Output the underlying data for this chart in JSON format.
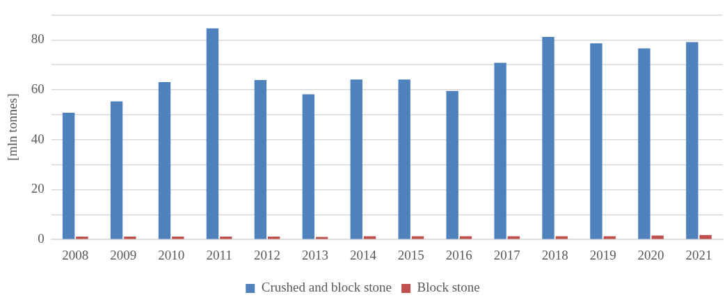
{
  "chart_data": {
    "type": "bar",
    "ylabel": "[mln tonnes]",
    "categories": [
      "2008",
      "2009",
      "2010",
      "2011",
      "2012",
      "2013",
      "2014",
      "2015",
      "2016",
      "2017",
      "2018",
      "2019",
      "2020",
      "2021"
    ],
    "series": [
      {
        "name": "Crushed and block stone",
        "color": "#4f81bd",
        "values": [
          50.8,
          55.3,
          63.1,
          84.6,
          63.9,
          58.2,
          64.1,
          64.1,
          59.5,
          70.8,
          81.2,
          78.6,
          76.6,
          79.1
        ]
      },
      {
        "name": "Block stone",
        "color": "#c0504d",
        "values": [
          1.2,
          1.2,
          1.2,
          1.2,
          1.2,
          1.0,
          1.3,
          1.3,
          1.3,
          1.3,
          1.3,
          1.3,
          1.6,
          1.8
        ]
      }
    ],
    "ylim": [
      0,
      90
    ],
    "yticks": [
      0,
      {
        "value": 10,
        "label": null
      },
      20,
      {
        "value": 30,
        "label": null
      },
      40,
      {
        "value": 50,
        "label": null
      },
      60,
      {
        "value": 70,
        "label": null
      },
      80,
      {
        "value": 90,
        "label": null
      }
    ],
    "grid": "y",
    "legend": "bottom"
  }
}
